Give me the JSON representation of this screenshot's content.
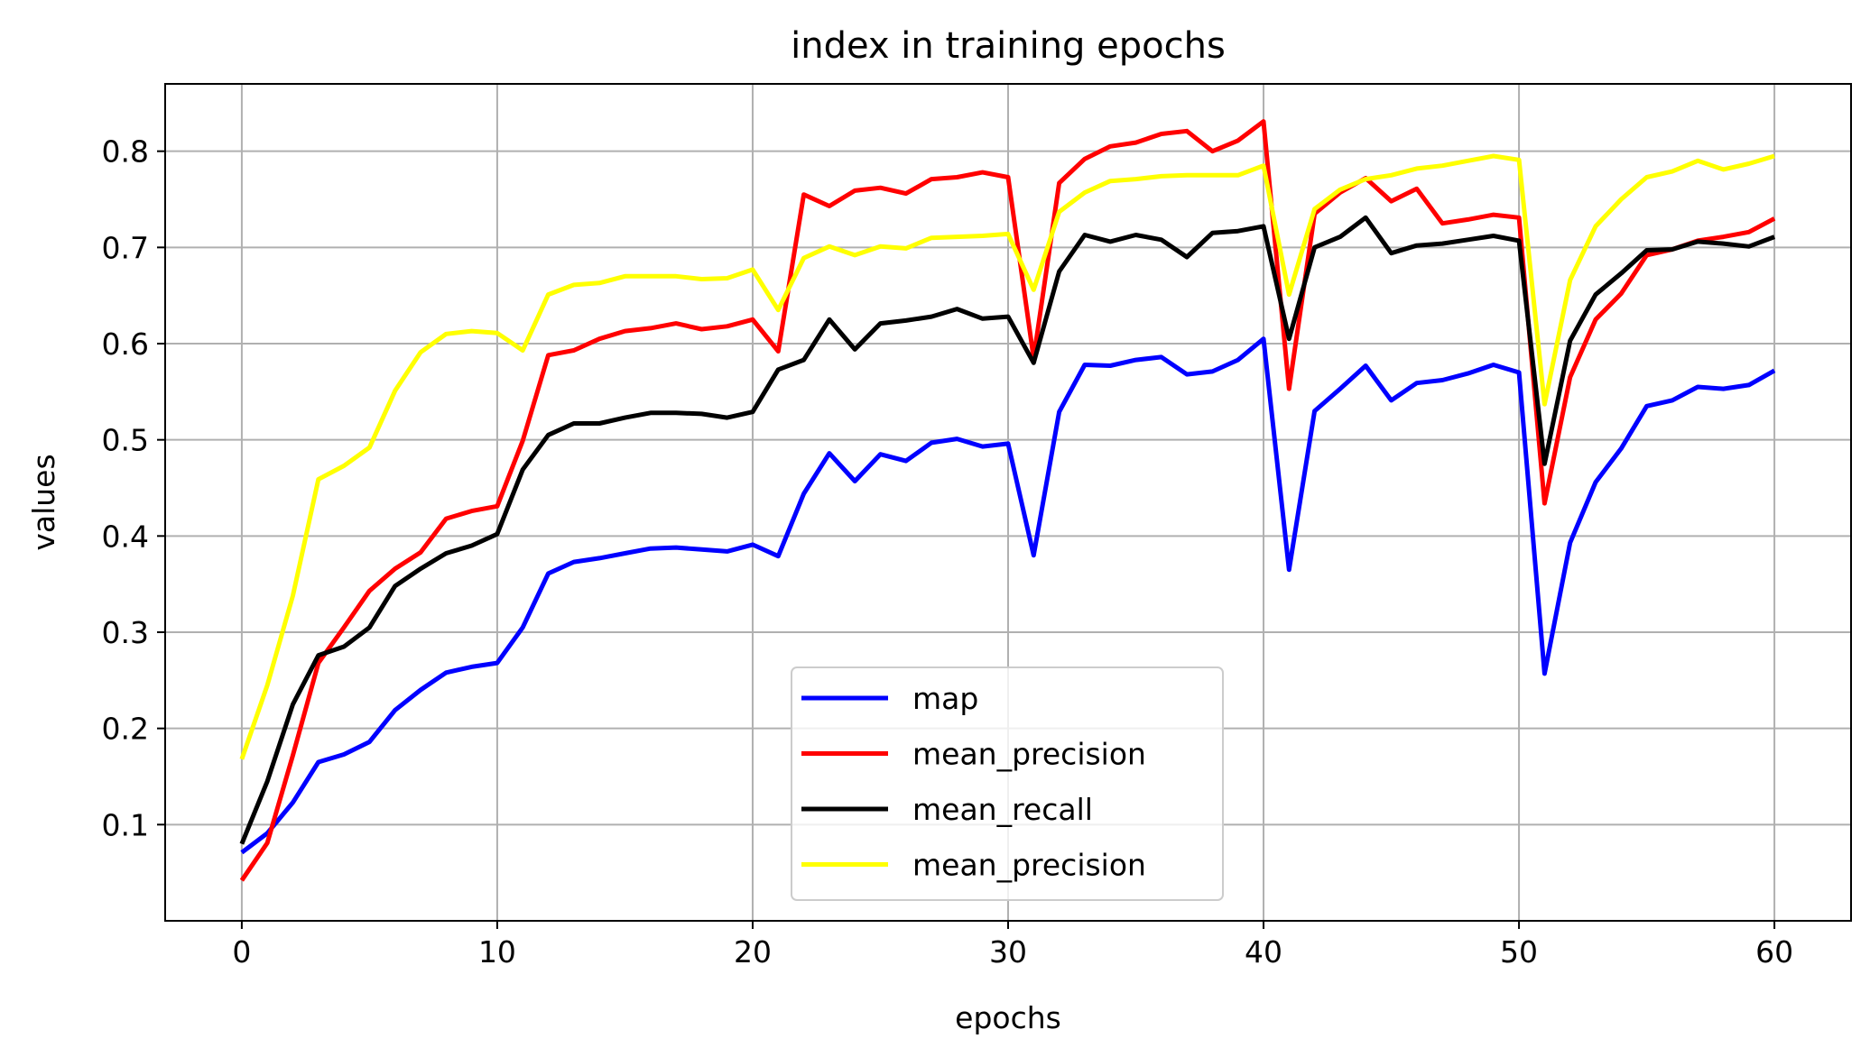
{
  "chart_data": {
    "type": "line",
    "title": "index in training epochs",
    "xlabel": "epochs",
    "ylabel": "values",
    "xlim": [
      -3,
      63
    ],
    "ylim": [
      0.0,
      0.87
    ],
    "xticks": [
      "0",
      "10",
      "20",
      "30",
      "40",
      "50",
      "60"
    ],
    "yticks": [
      "0.1",
      "0.2",
      "0.3",
      "0.4",
      "0.5",
      "0.6",
      "0.7",
      "0.8"
    ],
    "grid": true,
    "legend_position": "lower center",
    "x": [
      0,
      1,
      2,
      3,
      4,
      5,
      6,
      7,
      8,
      9,
      10,
      11,
      12,
      13,
      14,
      15,
      16,
      17,
      18,
      19,
      20,
      21,
      22,
      23,
      24,
      25,
      26,
      27,
      28,
      29,
      30,
      31,
      32,
      33,
      34,
      35,
      36,
      37,
      38,
      39,
      40,
      41,
      42,
      43,
      44,
      45,
      46,
      47,
      48,
      49,
      50,
      51,
      52,
      53,
      54,
      55,
      56,
      57,
      58,
      59,
      60
    ],
    "series": [
      {
        "name": "map",
        "color": "#0000ff",
        "values": [
          0.071,
          0.091,
          0.123,
          0.165,
          0.173,
          0.186,
          0.219,
          0.24,
          0.258,
          0.264,
          0.268,
          0.305,
          0.361,
          0.373,
          0.377,
          0.382,
          0.387,
          0.388,
          0.386,
          0.384,
          0.391,
          0.379,
          0.444,
          0.486,
          0.457,
          0.485,
          0.478,
          0.497,
          0.501,
          0.493,
          0.496,
          0.38,
          0.529,
          0.578,
          0.577,
          0.583,
          0.586,
          0.568,
          0.571,
          0.583,
          0.605,
          0.365,
          0.53,
          0.553,
          0.577,
          0.541,
          0.559,
          0.562,
          0.569,
          0.578,
          0.57,
          0.257,
          0.393,
          0.456,
          0.491,
          0.535,
          0.541,
          0.555,
          0.553,
          0.557,
          0.572
        ]
      },
      {
        "name": "mean_precision",
        "color": "#ff0000",
        "values": [
          0.042,
          0.081,
          0.172,
          0.268,
          0.305,
          0.343,
          0.366,
          0.383,
          0.418,
          0.426,
          0.431,
          0.499,
          0.588,
          0.593,
          0.605,
          0.613,
          0.616,
          0.621,
          0.615,
          0.618,
          0.625,
          0.592,
          0.755,
          0.743,
          0.759,
          0.762,
          0.756,
          0.771,
          0.773,
          0.778,
          0.773,
          0.585,
          0.767,
          0.792,
          0.805,
          0.809,
          0.818,
          0.821,
          0.8,
          0.811,
          0.831,
          0.553,
          0.735,
          0.757,
          0.772,
          0.748,
          0.761,
          0.725,
          0.729,
          0.734,
          0.731,
          0.434,
          0.565,
          0.625,
          0.652,
          0.692,
          0.698,
          0.707,
          0.711,
          0.716,
          0.73
        ]
      },
      {
        "name": "mean_recall",
        "color": "#000000",
        "values": [
          0.08,
          0.145,
          0.225,
          0.276,
          0.285,
          0.305,
          0.348,
          0.366,
          0.382,
          0.39,
          0.402,
          0.469,
          0.505,
          0.517,
          0.517,
          0.523,
          0.528,
          0.528,
          0.527,
          0.523,
          0.529,
          0.573,
          0.583,
          0.625,
          0.594,
          0.621,
          0.624,
          0.628,
          0.636,
          0.626,
          0.628,
          0.58,
          0.675,
          0.713,
          0.706,
          0.713,
          0.708,
          0.69,
          0.715,
          0.717,
          0.722,
          0.605,
          0.7,
          0.711,
          0.731,
          0.694,
          0.702,
          0.704,
          0.708,
          0.712,
          0.707,
          0.475,
          0.603,
          0.651,
          0.673,
          0.697,
          0.698,
          0.706,
          0.704,
          0.701,
          0.711
        ]
      },
      {
        "name": "mean_precision",
        "color": "#ffff00",
        "values": [
          0.168,
          0.245,
          0.338,
          0.459,
          0.473,
          0.492,
          0.551,
          0.591,
          0.61,
          0.613,
          0.611,
          0.593,
          0.651,
          0.661,
          0.663,
          0.67,
          0.67,
          0.67,
          0.667,
          0.668,
          0.677,
          0.635,
          0.689,
          0.701,
          0.692,
          0.701,
          0.699,
          0.71,
          0.711,
          0.712,
          0.714,
          0.656,
          0.737,
          0.757,
          0.769,
          0.771,
          0.774,
          0.775,
          0.775,
          0.775,
          0.785,
          0.651,
          0.74,
          0.76,
          0.771,
          0.775,
          0.782,
          0.785,
          0.79,
          0.795,
          0.791,
          0.537,
          0.666,
          0.722,
          0.75,
          0.773,
          0.779,
          0.79,
          0.781,
          0.787,
          0.795
        ]
      }
    ]
  }
}
